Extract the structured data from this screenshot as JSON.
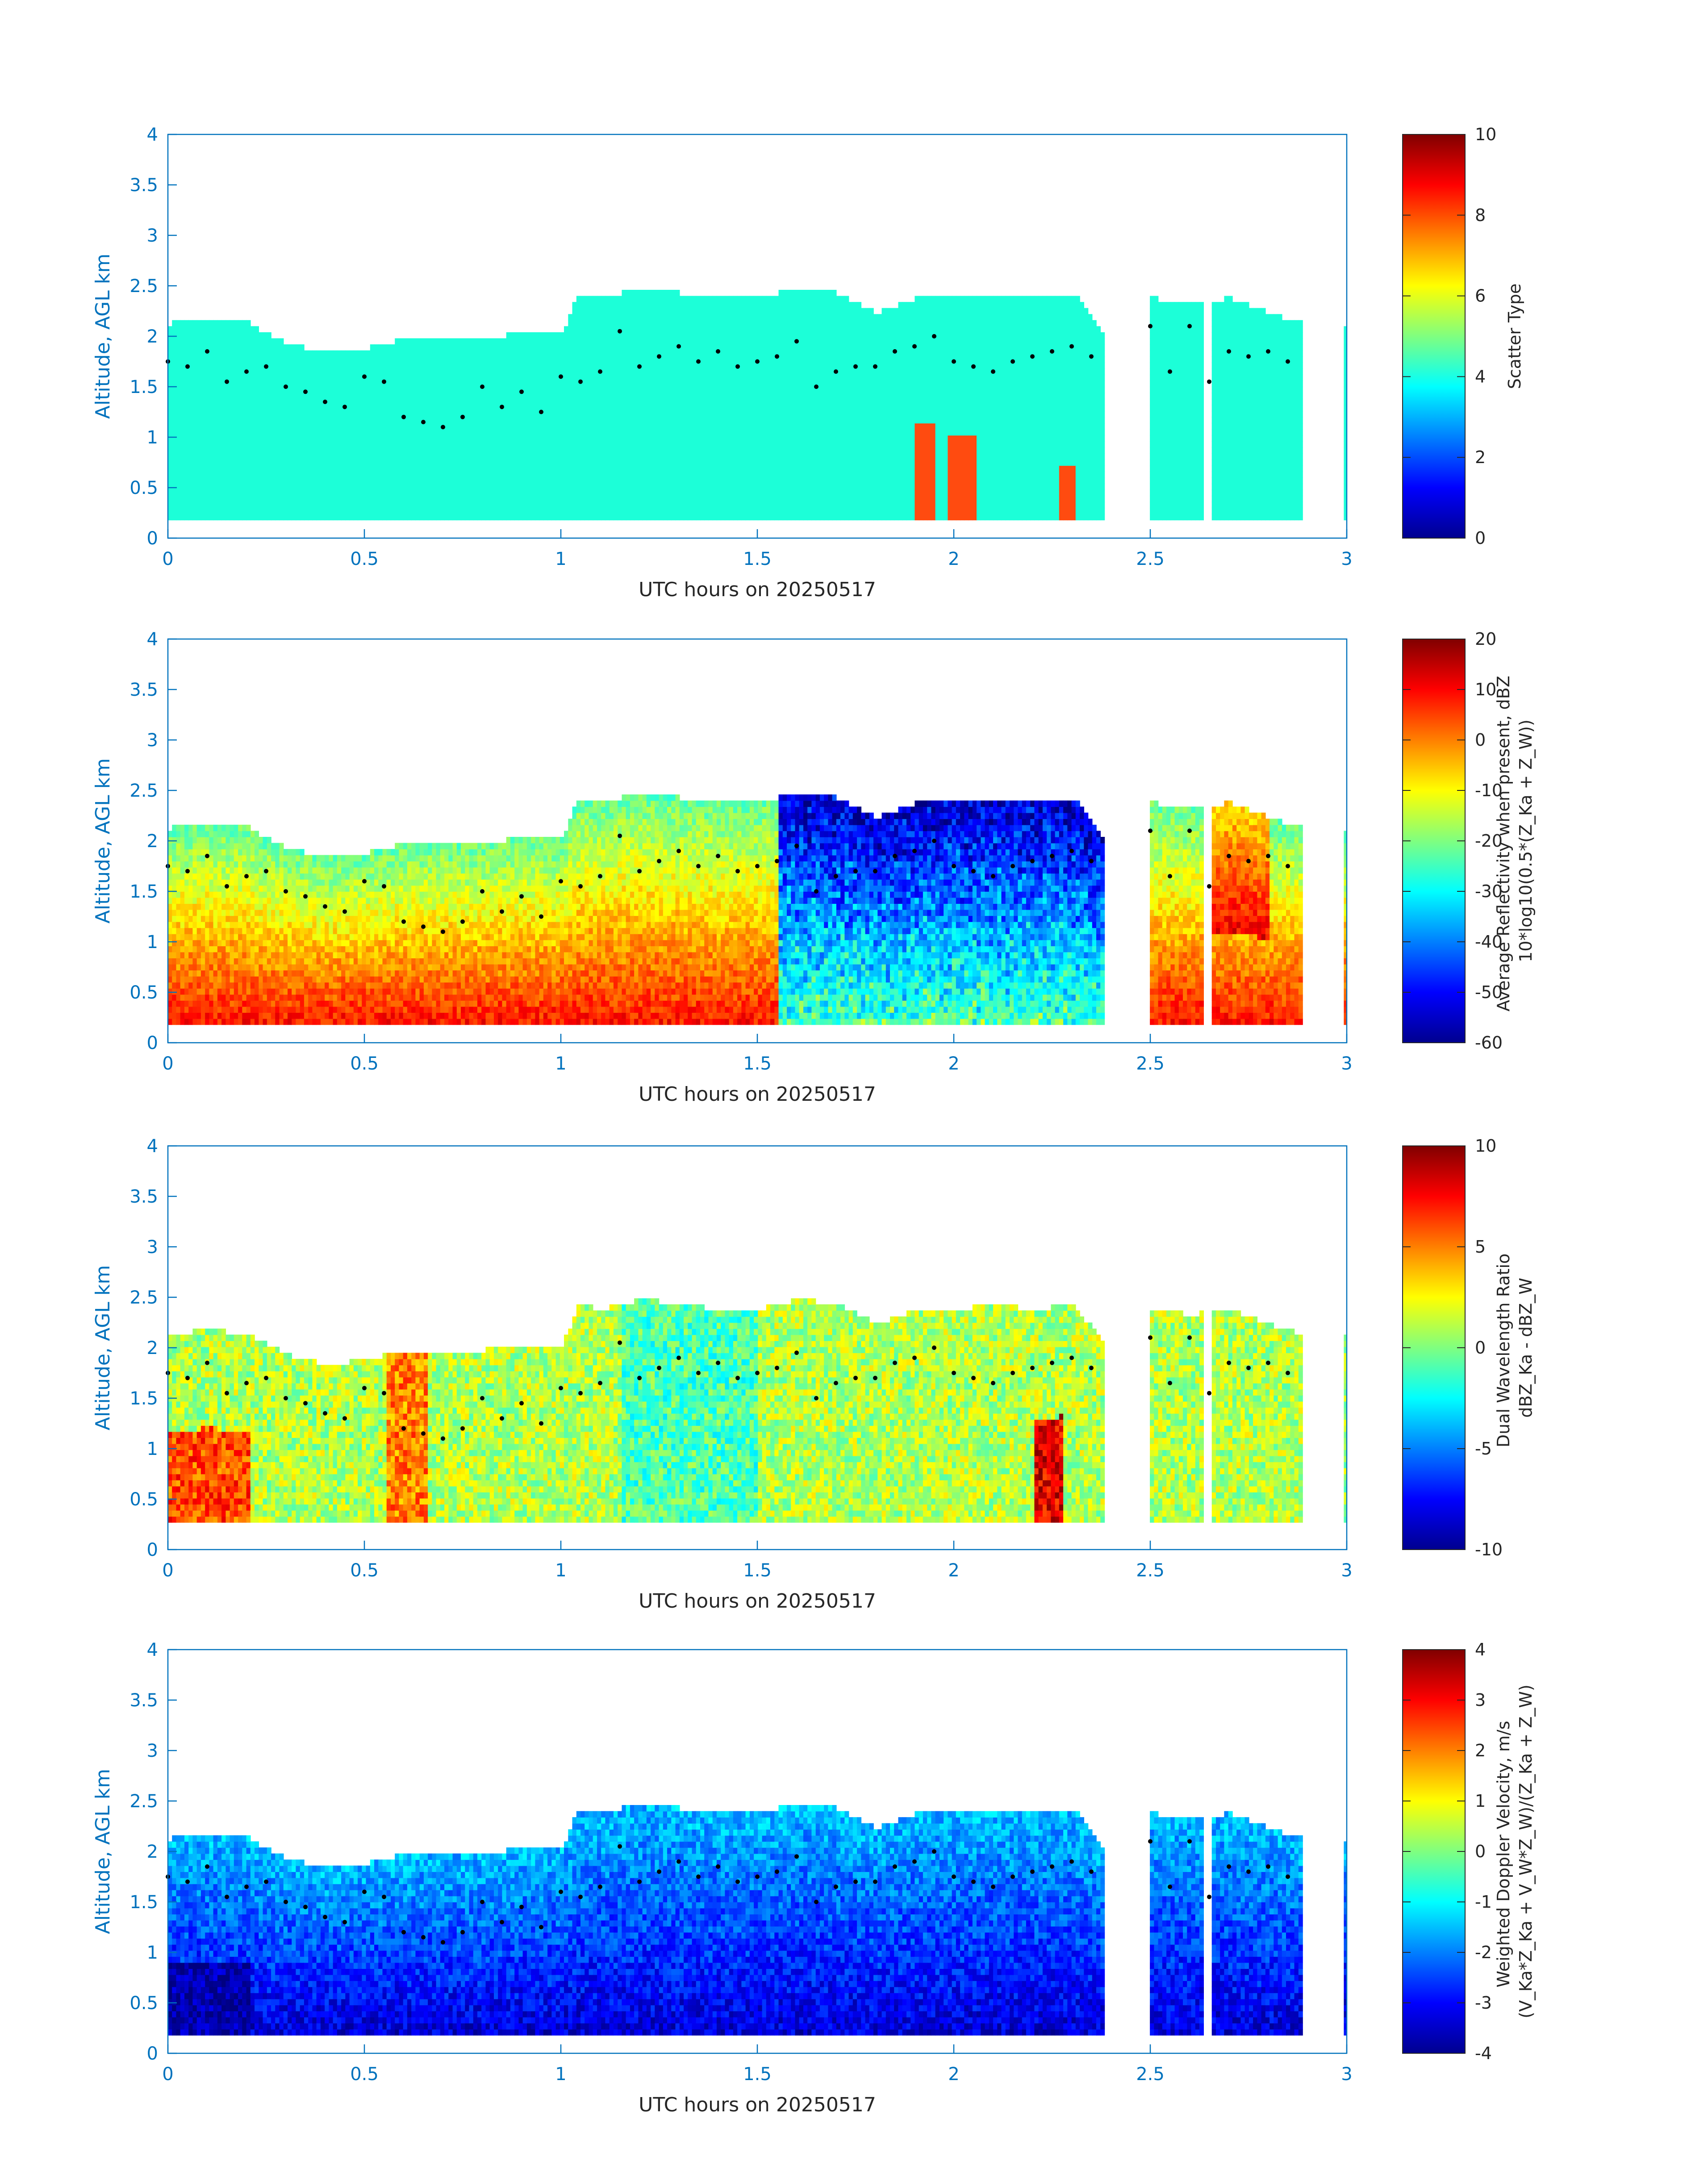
{
  "figure": {
    "date": "20250517"
  },
  "chart_data": [
    {
      "type": "heatmap",
      "panel": 1,
      "xlabel": "UTC hours on 20250517",
      "ylabel": "Altitude, AGL km",
      "xlim": [
        0,
        3
      ],
      "ylim": [
        0,
        4
      ],
      "xticks": [
        "0",
        "0.5",
        "1",
        "1.5",
        "2",
        "2.5",
        "3"
      ],
      "yticks": [
        "0",
        "0.5",
        "1",
        "1.5",
        "2",
        "2.5",
        "3",
        "3.5",
        "4"
      ],
      "colorbar": {
        "label_lines": [
          "Scatter Type"
        ],
        "range": [
          0,
          10
        ],
        "ticks": [
          "0",
          "2",
          "4",
          "6",
          "8",
          "10"
        ]
      },
      "field": "scatter_type",
      "cloud_base_km": 0.18,
      "dominant_value": 4,
      "secondary_value": 8
    },
    {
      "type": "heatmap",
      "panel": 2,
      "xlabel": "UTC hours on 20250517",
      "ylabel": "Altitude, AGL km",
      "xlim": [
        0,
        3
      ],
      "ylim": [
        0,
        4
      ],
      "xticks": [
        "0",
        "0.5",
        "1",
        "1.5",
        "2",
        "2.5",
        "3"
      ],
      "yticks": [
        "0",
        "0.5",
        "1",
        "1.5",
        "2",
        "2.5",
        "3",
        "3.5",
        "4"
      ],
      "colorbar": {
        "label_lines": [
          "Average Reflectivity when present, dBZ",
          "10*log10(0.5*(Z_Ka + Z_W))"
        ],
        "range": [
          -60,
          20
        ],
        "ticks": [
          "-60",
          "-50",
          "-40",
          "-30",
          "-20",
          "-10",
          "0",
          "10",
          "20"
        ]
      },
      "field": "reflectivity_dbz",
      "cloud_base_km": 0.18
    },
    {
      "type": "heatmap",
      "panel": 3,
      "xlabel": "UTC hours on 20250517",
      "ylabel": "Altitude, AGL km",
      "xlim": [
        0,
        3
      ],
      "ylim": [
        0,
        4
      ],
      "xticks": [
        "0",
        "0.5",
        "1",
        "1.5",
        "2",
        "2.5",
        "3"
      ],
      "yticks": [
        "0",
        "0.5",
        "1",
        "1.5",
        "2",
        "2.5",
        "3",
        "3.5",
        "4"
      ],
      "colorbar": {
        "label_lines": [
          "Dual Wavelength Ratio",
          "dBZ_Ka - dBZ_W"
        ],
        "range": [
          -10,
          10
        ],
        "ticks": [
          "-10",
          "-5",
          "0",
          "5",
          "10"
        ]
      },
      "field": "dual_wavelength_ratio_db",
      "cloud_base_km": 0.27
    },
    {
      "type": "heatmap",
      "panel": 4,
      "xlabel": "UTC hours on 20250517",
      "ylabel": "Altitude, AGL km",
      "xlim": [
        0,
        3
      ],
      "ylim": [
        0,
        4
      ],
      "xticks": [
        "0",
        "0.5",
        "1",
        "1.5",
        "2",
        "2.5",
        "3"
      ],
      "yticks": [
        "0",
        "0.5",
        "1",
        "1.5",
        "2",
        "2.5",
        "3",
        "3.5",
        "4"
      ],
      "colorbar": {
        "label_lines": [
          "Weighted Doppler Velocity, m/s",
          "(V_Ka*Z_Ka + V_W*Z_W)/(Z_Ka + Z_W)"
        ],
        "range": [
          -4,
          4
        ],
        "ticks": [
          "-4",
          "-3",
          "-2",
          "-1",
          "0",
          "1",
          "2",
          "3",
          "4"
        ]
      },
      "field": "doppler_velocity_ms",
      "cloud_base_km": 0.18
    }
  ],
  "cloud_top_km": {
    "x": [
      0.0,
      0.1,
      0.2,
      0.3,
      0.4,
      0.5,
      0.6,
      0.7,
      0.8,
      0.9,
      1.0,
      1.04,
      1.1,
      1.2,
      1.3,
      1.4,
      1.5,
      1.6,
      1.7,
      1.8,
      1.9,
      2.0,
      2.1,
      2.2,
      2.3,
      2.38,
      2.49,
      2.6,
      2.7,
      2.8,
      2.88
    ],
    "y": [
      2.1,
      2.15,
      2.1,
      1.9,
      1.8,
      1.85,
      1.95,
      1.95,
      1.95,
      2.0,
      2.0,
      2.4,
      2.35,
      2.45,
      2.4,
      2.35,
      2.35,
      2.45,
      2.4,
      2.2,
      2.35,
      2.35,
      2.4,
      2.35,
      2.4,
      2.0,
      2.35,
      2.3,
      2.35,
      2.2,
      2.1
    ]
  },
  "dot_track_km": {
    "x": [
      0.0,
      0.05,
      0.1,
      0.15,
      0.2,
      0.25,
      0.3,
      0.35,
      0.4,
      0.45,
      0.5,
      0.55,
      0.6,
      0.65,
      0.7,
      0.75,
      0.8,
      0.85,
      0.9,
      0.95,
      1.0,
      1.05,
      1.1,
      1.15,
      1.2,
      1.25,
      1.3,
      1.35,
      1.4,
      1.45,
      1.5,
      1.55,
      1.6,
      1.65,
      1.7,
      1.75,
      1.8,
      1.85,
      1.9,
      1.95,
      2.0,
      2.05,
      2.1,
      2.15,
      2.2,
      2.25,
      2.3,
      2.35,
      2.5,
      2.55,
      2.6,
      2.65,
      2.7,
      2.75,
      2.8,
      2.85
    ],
    "y": [
      1.75,
      1.7,
      1.85,
      1.55,
      1.65,
      1.7,
      1.5,
      1.45,
      1.35,
      1.3,
      1.6,
      1.55,
      1.2,
      1.15,
      1.1,
      1.2,
      1.5,
      1.3,
      1.45,
      1.25,
      1.6,
      1.55,
      1.65,
      2.05,
      1.7,
      1.8,
      1.9,
      1.75,
      1.85,
      1.7,
      1.75,
      1.8,
      1.95,
      1.5,
      1.65,
      1.7,
      1.7,
      1.85,
      1.9,
      2.0,
      1.75,
      1.7,
      1.65,
      1.75,
      1.8,
      1.85,
      1.9,
      1.8,
      2.1,
      1.65,
      2.1,
      1.55,
      1.85,
      1.8,
      1.85,
      1.75
    ]
  },
  "data_gaps_hours": [
    [
      2.38,
      2.49
    ],
    [
      2.63,
      2.65
    ],
    [
      2.88,
      2.99
    ]
  ]
}
